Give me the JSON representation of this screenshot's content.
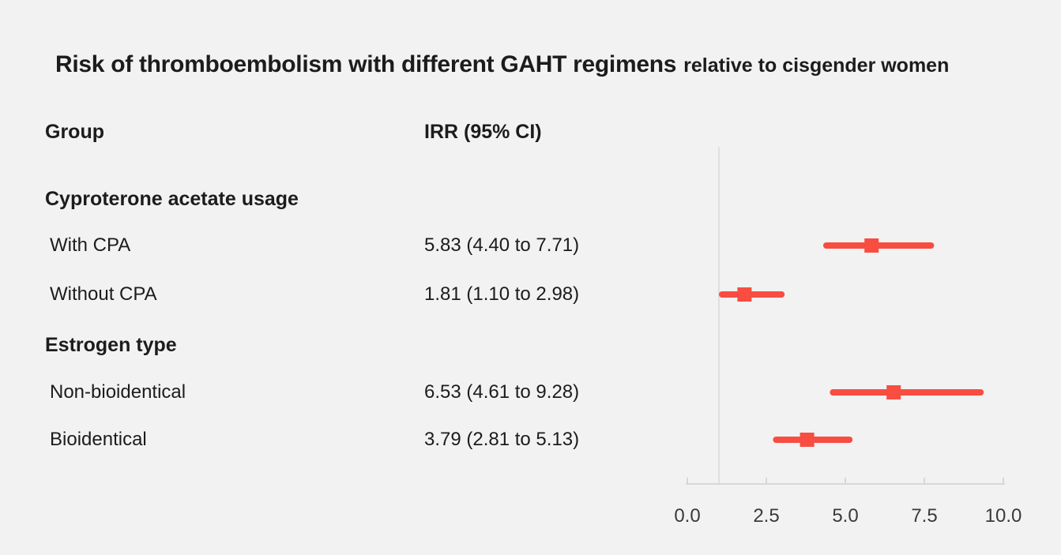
{
  "figure": {
    "title_main": "Risk of thromboembolism with different GAHT regimens",
    "title_suffix": "relative to cisgender women"
  },
  "columns": {
    "group": "Group",
    "irr": "IRR (95% CI)"
  },
  "colors": {
    "background": "#f2f2f2",
    "marker": "#f84d41",
    "reference_line": "#dde0e3",
    "axis": "#d5d8da",
    "text": "#1c1c1c",
    "tick_label": "#3a3a3a"
  },
  "chart_data": {
    "type": "forest",
    "title": "Risk of thromboembolism with different GAHT regimens relative to cisgender women",
    "value_column_label": "IRR (95% CI)",
    "x_axis": {
      "xlim": [
        0,
        10
      ],
      "ticks": [
        0,
        2.5,
        5,
        7.5,
        10
      ],
      "tick_labels": [
        "0.0",
        "2.5",
        "5.0",
        "7.5",
        "10.0"
      ],
      "reference_value": 1.0
    },
    "groups": [
      {
        "label": "Cyproterone acetate usage",
        "rows": [
          {
            "label": "With CPA",
            "irr": 5.83,
            "ci_low": 4.4,
            "ci_high": 7.71,
            "display": "5.83 (4.40 to 7.71)"
          },
          {
            "label": "Without CPA",
            "irr": 1.81,
            "ci_low": 1.1,
            "ci_high": 2.98,
            "display": "1.81 (1.10 to 2.98)"
          }
        ]
      },
      {
        "label": "Estrogen type",
        "rows": [
          {
            "label": "Non-bioidentical",
            "irr": 6.53,
            "ci_low": 4.61,
            "ci_high": 9.28,
            "display": "6.53 (4.61 to 9.28)"
          },
          {
            "label": "Bioidentical",
            "irr": 3.79,
            "ci_low": 2.81,
            "ci_high": 5.13,
            "display": "3.79 (2.81 to 5.13)"
          }
        ]
      }
    ]
  }
}
